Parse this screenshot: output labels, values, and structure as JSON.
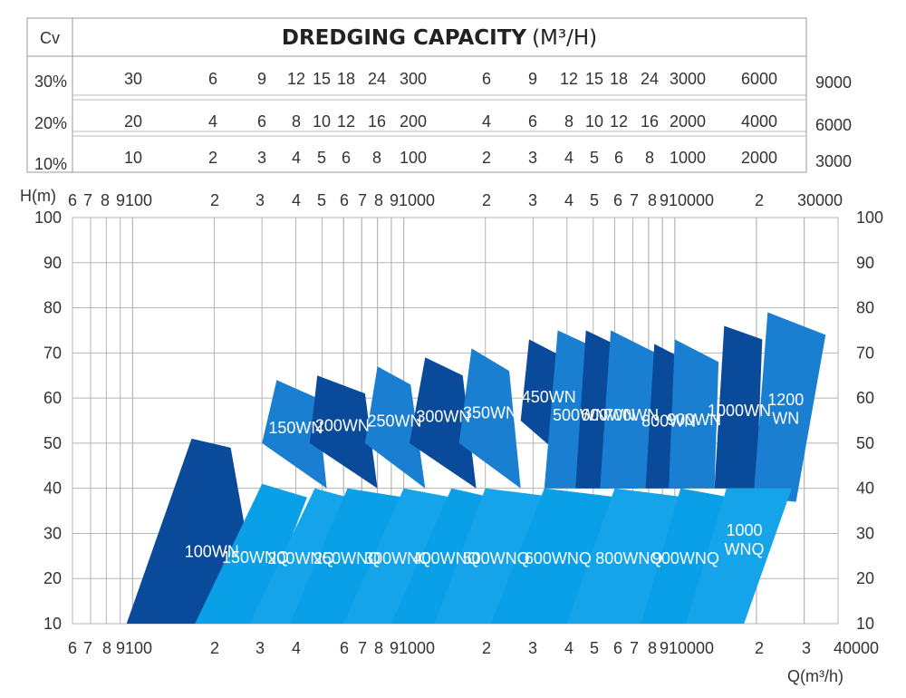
{
  "chart_data": {
    "type": "area",
    "title": "DREDGING CAPACITY",
    "title_unit": "(M³/H)",
    "xlabel": "Q(m³/h)",
    "ylabel": "H(m)",
    "x_scale": "log",
    "xlim": [
      60,
      40000
    ],
    "ylim": [
      10,
      100
    ],
    "grid": true,
    "top_axis_ticks": [
      "6",
      "7",
      "8",
      "9100",
      "2",
      "3",
      "4",
      "5",
      "6",
      "7",
      "8",
      "91000",
      "2",
      "3",
      "4",
      "5",
      "6",
      "7",
      "8",
      "910000",
      "2",
      "30000"
    ],
    "bottom_axis_ticks": [
      "6",
      "7",
      "8",
      "9100",
      "2",
      "3",
      "4",
      "6",
      "7",
      "8",
      "91000",
      "2",
      "3",
      "4",
      "5",
      "6",
      "7",
      "8",
      "910000",
      "2",
      "3",
      "40000"
    ],
    "y_ticks": [
      "10",
      "20",
      "30",
      "40",
      "50",
      "60",
      "70",
      "80",
      "90",
      "100"
    ],
    "cv_table": {
      "header": "Cv",
      "rows": [
        {
          "label": "30%",
          "values": [
            "30",
            "6",
            "9",
            "12",
            "15",
            "18",
            "24",
            "300",
            "6",
            "9",
            "12",
            "15",
            "18",
            "24",
            "3000",
            "6000"
          ],
          "end": "9000"
        },
        {
          "label": "20%",
          "values": [
            "20",
            "4",
            "6",
            "8",
            "10",
            "12",
            "16",
            "200",
            "4",
            "6",
            "8",
            "10",
            "12",
            "16",
            "2000",
            "4000"
          ],
          "end": "6000"
        },
        {
          "label": "10%",
          "values": [
            "10",
            "2",
            "3",
            "4",
            "5",
            "6",
            "8",
            "100",
            "2",
            "3",
            "4",
            "5",
            "6",
            "8",
            "1000",
            "2000"
          ],
          "end": "3000"
        }
      ]
    },
    "series": [
      {
        "name": "100WN",
        "color": "#0a4a9a",
        "q": [
          95,
          165,
          230,
          300
        ],
        "h": [
          10,
          51,
          49,
          10
        ]
      },
      {
        "name": "150WN",
        "color": "#1a7fd0",
        "q": [
          300,
          340,
          480,
          520
        ],
        "h": [
          50,
          64,
          60,
          40
        ]
      },
      {
        "name": "200WN",
        "color": "#0a4a9a",
        "q": [
          450,
          480,
          720,
          800
        ],
        "h": [
          50,
          65,
          61,
          40
        ]
      },
      {
        "name": "250WN",
        "color": "#1a7fd0",
        "q": [
          720,
          800,
          1060,
          1200
        ],
        "h": [
          50,
          67,
          63,
          40
        ]
      },
      {
        "name": "300WN",
        "color": "#0a4a9a",
        "q": [
          1050,
          1200,
          1650,
          1850
        ],
        "h": [
          50,
          69,
          65,
          40
        ]
      },
      {
        "name": "350WN",
        "color": "#1a7fd0",
        "q": [
          1600,
          1780,
          2450,
          2700
        ],
        "h": [
          50,
          71,
          66,
          40
        ]
      },
      {
        "name": "450WN",
        "color": "#0a4a9a",
        "q": [
          2700,
          2900,
          4200,
          4200
        ],
        "h": [
          55,
          73,
          68,
          45
        ]
      },
      {
        "name": "500WN",
        "color": "#1a7fd0",
        "q": [
          3300,
          3700,
          5600,
          5800
        ],
        "h": [
          40,
          75,
          70,
          40
        ]
      },
      {
        "name": "600WN",
        "color": "#0a4a9a",
        "q": [
          4300,
          4700,
          7000,
          7300
        ],
        "h": [
          40,
          75,
          70,
          40
        ]
      },
      {
        "name": "700WN",
        "color": "#1a7fd0",
        "q": [
          5300,
          5800,
          8500,
          8800
        ],
        "h": [
          40,
          75,
          70,
          40
        ]
      },
      {
        "name": "800WN",
        "color": "#0a4a9a",
        "q": [
          7800,
          8400,
          11300,
          11000
        ],
        "h": [
          40,
          72,
          68,
          40
        ]
      },
      {
        "name": "900WN",
        "color": "#1a7fd0",
        "q": [
          9500,
          10000,
          14500,
          14000
        ],
        "h": [
          40,
          73,
          68,
          40
        ]
      },
      {
        "name": "1000WN",
        "color": "#0a4a9a",
        "q": [
          14000,
          15200,
          21000,
          20000
        ],
        "h": [
          40,
          76,
          73,
          40
        ]
      },
      {
        "name": "1200 WN",
        "color": "#1a7fd0",
        "q": [
          19500,
          22000,
          36000,
          28000
        ],
        "h": [
          38,
          79,
          74,
          37
        ]
      },
      {
        "name": "150WNQ",
        "color": "#0aa0e8",
        "q": [
          170,
          300,
          440,
          290
        ],
        "h": [
          10,
          41,
          38,
          10
        ]
      },
      {
        "name": "200WNQ",
        "color": "#15a4ea",
        "q": [
          270,
          470,
          620,
          390
        ],
        "h": [
          10,
          40,
          38,
          10
        ]
      },
      {
        "name": "250WNQ",
        "color": "#0aa0e8",
        "q": [
          380,
          620,
          1000,
          620
        ],
        "h": [
          10,
          40,
          38,
          10
        ]
      },
      {
        "name": "300WNQ",
        "color": "#15a4ea",
        "q": [
          600,
          1000,
          1500,
          910
        ],
        "h": [
          10,
          40,
          38,
          10
        ]
      },
      {
        "name": "400WNQ",
        "color": "#0aa0e8",
        "q": [
          900,
          1500,
          2100,
          1500
        ],
        "h": [
          10,
          40,
          38,
          10
        ]
      },
      {
        "name": "500WNQ",
        "color": "#15a4ea",
        "q": [
          1300,
          2000,
          3700,
          2400
        ],
        "h": [
          10,
          40,
          38,
          10
        ]
      },
      {
        "name": "600WNQ",
        "color": "#0aa0e8",
        "q": [
          2100,
          3300,
          6200,
          4400
        ],
        "h": [
          10,
          40,
          38,
          10
        ]
      },
      {
        "name": "800WNQ",
        "color": "#15a4ea",
        "q": [
          4000,
          6000,
          11000,
          8000
        ],
        "h": [
          10,
          40,
          38,
          10
        ]
      },
      {
        "name": "900WNQ",
        "color": "#0aa0e8",
        "q": [
          7500,
          10500,
          16000,
          11500
        ],
        "h": [
          10,
          40,
          38,
          10
        ]
      },
      {
        "name": "1000 WNQ",
        "color": "#15a4ea",
        "q": [
          11000,
          15500,
          27000,
          18000
        ],
        "h": [
          10,
          40,
          40,
          10
        ]
      }
    ]
  }
}
